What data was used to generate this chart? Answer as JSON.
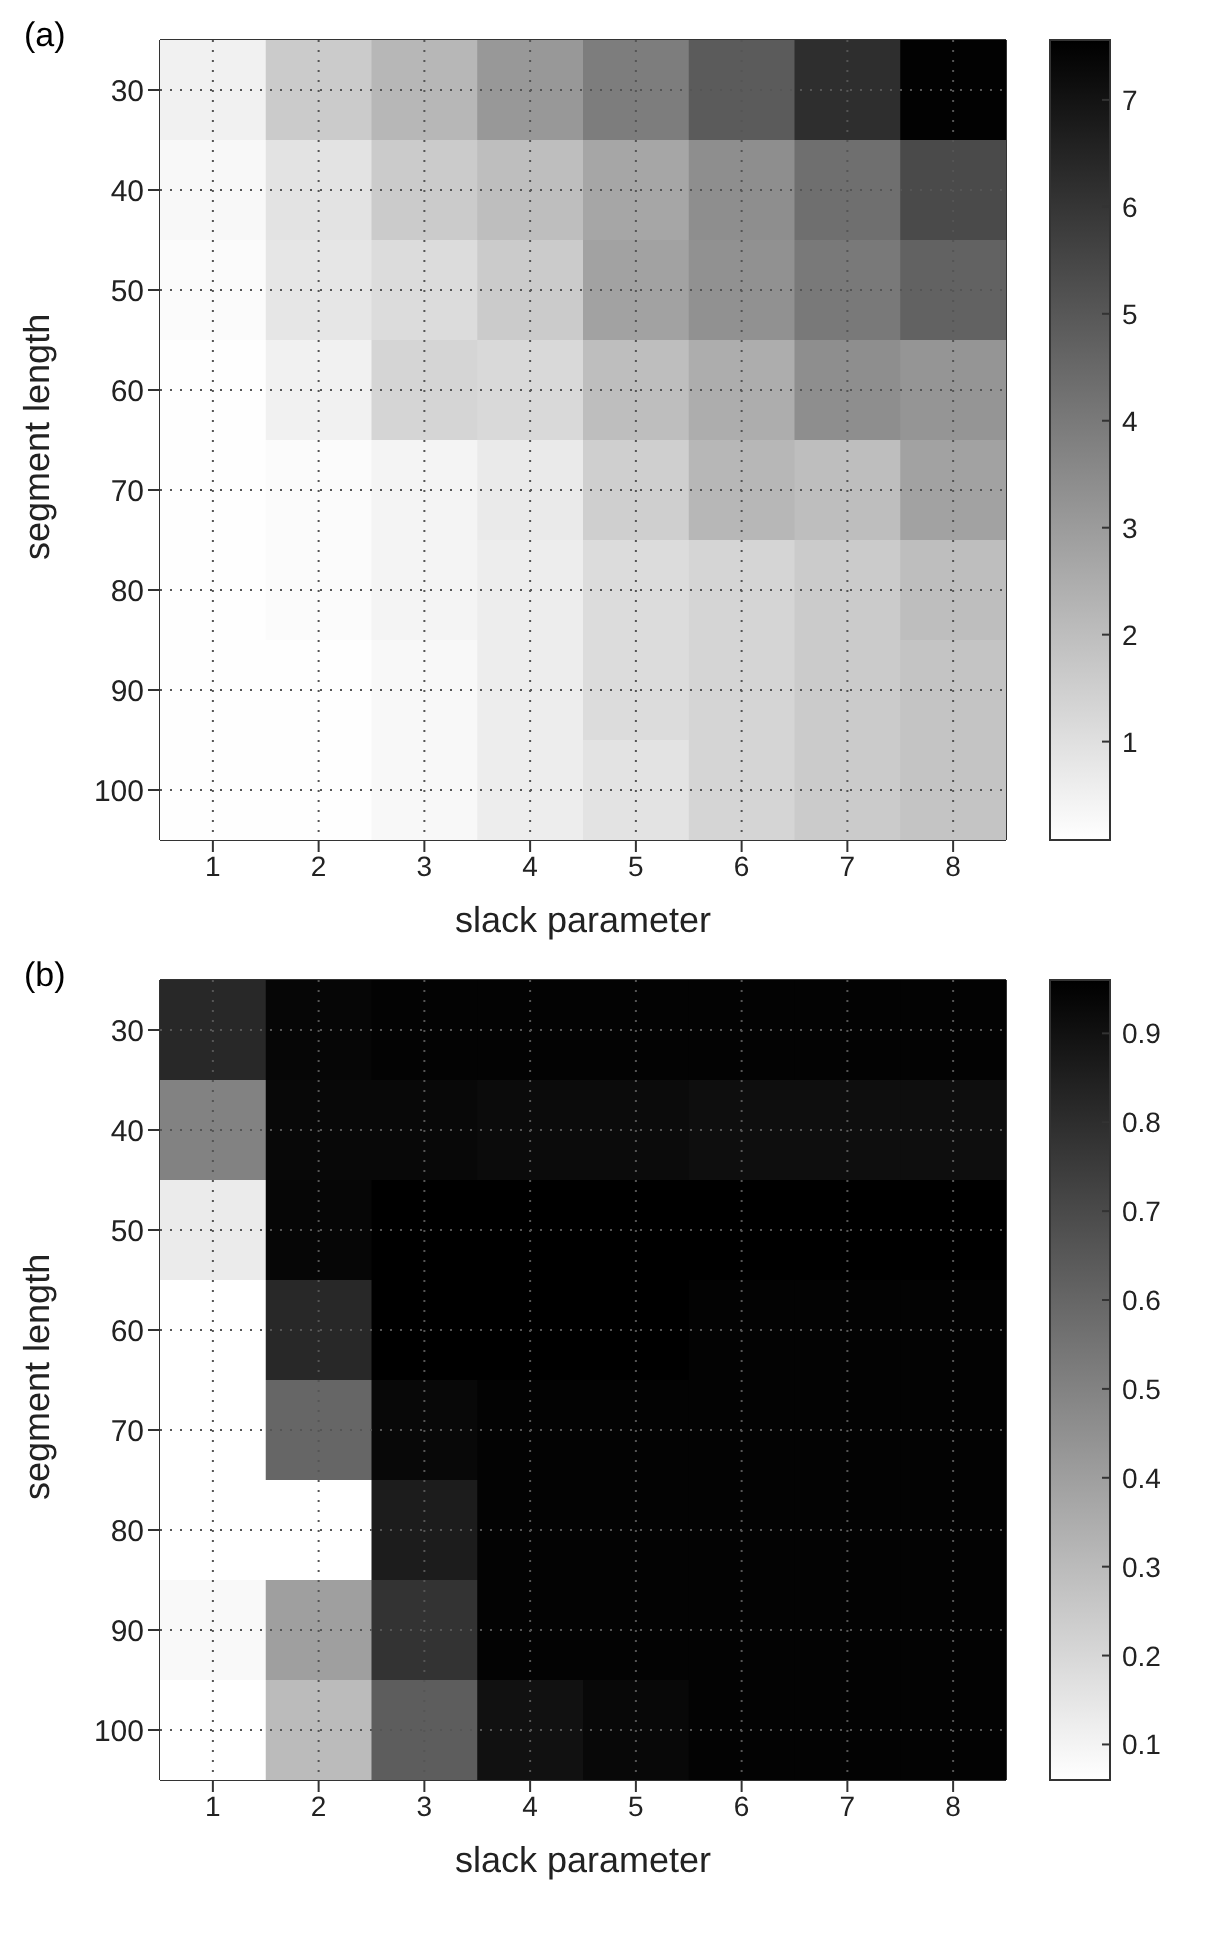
{
  "chart_data": [
    {
      "type": "heatmap",
      "annotations": [
        "(a)"
      ],
      "xlabel": "slack parameter",
      "ylabel": "segment length",
      "grid": true,
      "categories": [
        "1",
        "2",
        "3",
        "4",
        "5",
        "6",
        "7",
        "8"
      ],
      "y_categories": [
        "30",
        "40",
        "50",
        "60",
        "70",
        "80",
        "90",
        "100"
      ],
      "cells": [
        [
          0.5,
          1.6,
          2.2,
          3.1,
          3.9,
          4.9,
          6.2,
          7.5
        ],
        [
          0.3,
          0.9,
          1.6,
          2.0,
          2.7,
          3.4,
          4.3,
          5.4
        ],
        [
          0.2,
          0.8,
          1.1,
          1.6,
          2.8,
          3.3,
          4.0,
          4.7
        ],
        [
          0.1,
          0.5,
          1.3,
          1.2,
          2.0,
          2.5,
          3.4,
          3.2
        ],
        [
          0.1,
          0.2,
          0.4,
          0.7,
          1.5,
          2.2,
          2.0,
          2.8
        ],
        [
          0.1,
          0.2,
          0.4,
          0.6,
          1.1,
          1.3,
          1.6,
          2.0
        ],
        [
          0.1,
          0.1,
          0.3,
          0.6,
          1.1,
          1.3,
          1.6,
          1.8
        ],
        [
          0.1,
          0.1,
          0.3,
          0.6,
          0.9,
          1.3,
          1.6,
          1.8
        ]
      ],
      "clim": [
        0.08,
        7.56
      ],
      "cticks": [
        1,
        2,
        3,
        4,
        5,
        6,
        7
      ]
    },
    {
      "type": "heatmap",
      "annotations": [
        "(b)"
      ],
      "xlabel": "slack parameter",
      "ylabel": "segment length",
      "grid": true,
      "categories": [
        "1",
        "2",
        "3",
        "4",
        "5",
        "6",
        "7",
        "8"
      ],
      "y_categories": [
        "30",
        "40",
        "50",
        "60",
        "70",
        "80",
        "90",
        "100"
      ],
      "cells": [
        [
          0.82,
          0.94,
          0.95,
          0.95,
          0.95,
          0.95,
          0.95,
          0.95
        ],
        [
          0.5,
          0.93,
          0.93,
          0.92,
          0.92,
          0.91,
          0.91,
          0.91
        ],
        [
          0.13,
          0.94,
          0.96,
          0.96,
          0.96,
          0.96,
          0.96,
          0.96
        ],
        [
          0.06,
          0.82,
          0.96,
          0.96,
          0.96,
          0.95,
          0.95,
          0.95
        ],
        [
          0.06,
          0.6,
          0.93,
          0.95,
          0.95,
          0.95,
          0.95,
          0.95
        ],
        [
          0.06,
          0.06,
          0.86,
          0.95,
          0.95,
          0.95,
          0.95,
          0.95
        ],
        [
          0.08,
          0.4,
          0.78,
          0.95,
          0.95,
          0.95,
          0.95,
          0.95
        ],
        [
          0.06,
          0.3,
          0.63,
          0.9,
          0.93,
          0.95,
          0.95,
          0.95
        ]
      ],
      "clim": [
        0.06,
        0.96
      ],
      "cticks": [
        0.1,
        0.2,
        0.3,
        0.4,
        0.5,
        0.6,
        0.7,
        0.8,
        0.9
      ]
    }
  ]
}
